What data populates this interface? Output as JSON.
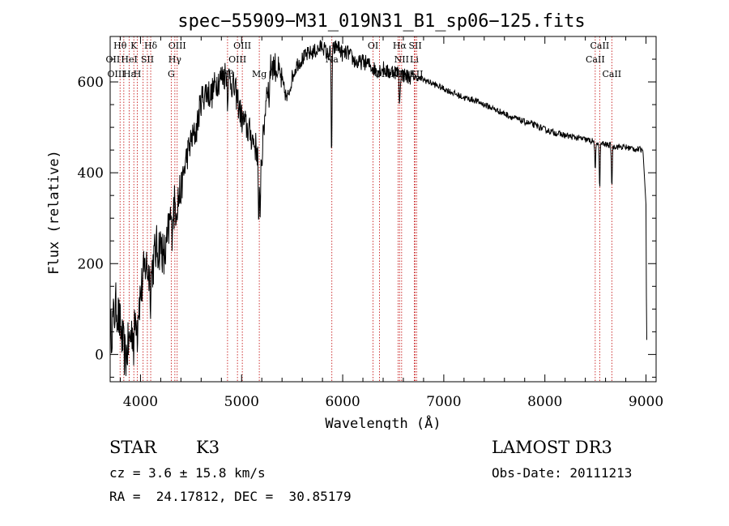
{
  "chart_data": {
    "type": "line",
    "title": "spec−55909−M31_019N31_B1_sp06−125.fits",
    "xlabel": "Wavelength (Å)",
    "ylabel": "Flux (relative)",
    "xlim": [
      3700,
      9100
    ],
    "ylim": [
      -60,
      700
    ],
    "xticks": [
      4000,
      5000,
      6000,
      7000,
      8000,
      9000
    ],
    "yticks": [
      0,
      200,
      400,
      600
    ],
    "grid": false,
    "colors": {
      "spectrum": "#000000",
      "lines": "#c00000"
    },
    "spectrum_anchors": [
      [
        3700,
        40
      ],
      [
        3760,
        110
      ],
      [
        3800,
        60
      ],
      [
        3850,
        -10
      ],
      [
        3900,
        40
      ],
      [
        3950,
        80
      ],
      [
        4000,
        130
      ],
      [
        4050,
        200
      ],
      [
        4100,
        170
      ],
      [
        4150,
        230
      ],
      [
        4200,
        240
      ],
      [
        4250,
        220
      ],
      [
        4300,
        310
      ],
      [
        4350,
        330
      ],
      [
        4400,
        360
      ],
      [
        4450,
        430
      ],
      [
        4500,
        470
      ],
      [
        4550,
        490
      ],
      [
        4600,
        560
      ],
      [
        4650,
        580
      ],
      [
        4700,
        570
      ],
      [
        4750,
        600
      ],
      [
        4800,
        610
      ],
      [
        4850,
        620
      ],
      [
        4900,
        600
      ],
      [
        4950,
        570
      ],
      [
        5000,
        520
      ],
      [
        5050,
        500
      ],
      [
        5100,
        480
      ],
      [
        5150,
        450
      ],
      [
        5200,
        430
      ],
      [
        5250,
        590
      ],
      [
        5300,
        640
      ],
      [
        5350,
        630
      ],
      [
        5400,
        600
      ],
      [
        5450,
        560
      ],
      [
        5500,
        610
      ],
      [
        5550,
        640
      ],
      [
        5600,
        650
      ],
      [
        5650,
        660
      ],
      [
        5700,
        665
      ],
      [
        5750,
        670
      ],
      [
        5800,
        680
      ],
      [
        5850,
        660
      ],
      [
        5900,
        670
      ],
      [
        5950,
        680
      ],
      [
        6000,
        660
      ],
      [
        6050,
        665
      ],
      [
        6100,
        650
      ],
      [
        6150,
        640
      ],
      [
        6200,
        645
      ],
      [
        6250,
        640
      ],
      [
        6300,
        630
      ],
      [
        6350,
        625
      ],
      [
        6400,
        630
      ],
      [
        6450,
        620
      ],
      [
        6500,
        625
      ],
      [
        6550,
        620
      ],
      [
        6600,
        615
      ],
      [
        6650,
        612
      ],
      [
        6700,
        610
      ],
      [
        6750,
        608
      ],
      [
        6800,
        605
      ],
      [
        6900,
        595
      ],
      [
        7000,
        585
      ],
      [
        7100,
        575
      ],
      [
        7200,
        565
      ],
      [
        7300,
        560
      ],
      [
        7400,
        550
      ],
      [
        7500,
        540
      ],
      [
        7600,
        530
      ],
      [
        7700,
        520
      ],
      [
        7800,
        512
      ],
      [
        7900,
        505
      ],
      [
        8000,
        495
      ],
      [
        8100,
        488
      ],
      [
        8200,
        482
      ],
      [
        8300,
        478
      ],
      [
        8400,
        473
      ],
      [
        8500,
        468
      ],
      [
        8600,
        462
      ],
      [
        8700,
        458
      ],
      [
        8800,
        456
      ],
      [
        8900,
        452
      ],
      [
        8970,
        450
      ],
      [
        9000,
        330
      ],
      [
        9005,
        80
      ],
      [
        9010,
        0
      ]
    ],
    "absorption_features": [
      [
        3934,
        60
      ],
      [
        3969,
        50
      ],
      [
        4101,
        40
      ],
      [
        4227,
        40
      ],
      [
        4308,
        50
      ],
      [
        4861,
        50
      ],
      [
        5170,
        180
      ],
      [
        5183,
        120
      ],
      [
        5270,
        60
      ],
      [
        5890,
        230
      ],
      [
        6563,
        70
      ],
      [
        8498,
        70
      ],
      [
        8542,
        100
      ],
      [
        8662,
        90
      ]
    ],
    "lines": [
      {
        "wavelength": 3798,
        "label": ""
      },
      {
        "wavelength": 3835,
        "label": ""
      },
      {
        "wavelength": 3889,
        "label": ""
      },
      {
        "wavelength": 3934,
        "label": ""
      },
      {
        "wavelength": 3969,
        "label": ""
      },
      {
        "wavelength": 4026,
        "label": ""
      },
      {
        "wavelength": 4068,
        "label": ""
      },
      {
        "wavelength": 4101,
        "label": ""
      },
      {
        "wavelength": 4304,
        "label": ""
      },
      {
        "wavelength": 4340,
        "label": ""
      },
      {
        "wavelength": 4363,
        "label": ""
      },
      {
        "wavelength": 4861,
        "label": ""
      },
      {
        "wavelength": 4959,
        "label": ""
      },
      {
        "wavelength": 5007,
        "label": ""
      },
      {
        "wavelength": 5175,
        "label": ""
      },
      {
        "wavelength": 5893,
        "label": ""
      },
      {
        "wavelength": 6300,
        "label": ""
      },
      {
        "wavelength": 6364,
        "label": ""
      },
      {
        "wavelength": 6548,
        "label": ""
      },
      {
        "wavelength": 6563,
        "label": ""
      },
      {
        "wavelength": 6583,
        "label": ""
      },
      {
        "wavelength": 6708,
        "label": ""
      },
      {
        "wavelength": 6717,
        "label": ""
      },
      {
        "wavelength": 6731,
        "label": ""
      },
      {
        "wavelength": 8498,
        "label": ""
      },
      {
        "wavelength": 8542,
        "label": ""
      },
      {
        "wavelength": 8662,
        "label": ""
      }
    ],
    "line_labels": [
      {
        "text": "Hθ",
        "x": 3798,
        "row": 0
      },
      {
        "text": "K",
        "x": 3934,
        "row": 0
      },
      {
        "text": "Hδ",
        "x": 4101,
        "row": 0
      },
      {
        "text": "OIII",
        "x": 4363,
        "row": 0
      },
      {
        "text": "OIII",
        "x": 5007,
        "row": 0
      },
      {
        "text": "OI",
        "x": 6300,
        "row": 0
      },
      {
        "text": "Hα",
        "x": 6563,
        "row": 0
      },
      {
        "text": "SII",
        "x": 6717,
        "row": 0
      },
      {
        "text": "CaII",
        "x": 8542,
        "row": 0
      },
      {
        "text": "OII",
        "x": 3727,
        "row": 1
      },
      {
        "text": "HeI",
        "x": 3889,
        "row": 1
      },
      {
        "text": "SII",
        "x": 4068,
        "row": 1
      },
      {
        "text": "Hγ",
        "x": 4340,
        "row": 1
      },
      {
        "text": "OIII",
        "x": 4959,
        "row": 1
      },
      {
        "text": "Na",
        "x": 5893,
        "row": 1
      },
      {
        "text": "NII",
        "x": 6583,
        "row": 1
      },
      {
        "text": "Li",
        "x": 6708,
        "row": 1
      },
      {
        "text": "CaII",
        "x": 8498,
        "row": 1
      },
      {
        "text": "OIII",
        "x": 3760,
        "row": 2
      },
      {
        "text": "Hε",
        "x": 3889,
        "row": 2
      },
      {
        "text": "H",
        "x": 3969,
        "row": 2
      },
      {
        "text": "G",
        "x": 4304,
        "row": 2
      },
      {
        "text": "Hβ",
        "x": 4861,
        "row": 2
      },
      {
        "text": "Mg",
        "x": 5175,
        "row": 2
      },
      {
        "text": "OI",
        "x": 6364,
        "row": 2
      },
      {
        "text": "NII",
        "x": 6548,
        "row": 2
      },
      {
        "text": "SII",
        "x": 6731,
        "row": 2
      },
      {
        "text": "CaII",
        "x": 8662,
        "row": 2
      }
    ]
  },
  "info": {
    "class_label": "STAR",
    "subclass_label": "K3",
    "survey_label": "LAMOST DR3",
    "redshift_text": "cz = 3.6 ± 15.8 km/s",
    "obs_date_text": "Obs-Date: 20111213",
    "coords_text": "RA =  24.17812, DEC =  30.85179"
  }
}
